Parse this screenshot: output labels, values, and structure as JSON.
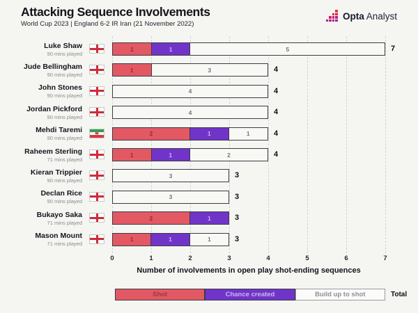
{
  "header": {
    "title": "Attacking Sequence Involvements",
    "subtitle": "World Cup 2023 | England 6-2 IR Iran (21 November 2022)",
    "brand": {
      "name_bold": "Opta",
      "name_light": "Analyst"
    }
  },
  "chart_data": {
    "type": "bar",
    "orientation": "horizontal-stacked",
    "title": "Attacking Sequence Involvements",
    "xlabel": "Number of involvements in open play shot-ending sequences",
    "xlim": [
      0,
      7
    ],
    "xticks": [
      0,
      1,
      2,
      3,
      4,
      5,
      6,
      7
    ],
    "grid": "vertical-dashed",
    "legend_position": "bottom",
    "series_keys": [
      "Shot",
      "Chance created",
      "Build up to shot"
    ],
    "players": [
      {
        "name": "Luke Shaw",
        "mins": "90 mins played",
        "flag": "england",
        "shot": 1,
        "chance_created": 1,
        "build_up": 5,
        "total": 7
      },
      {
        "name": "Jude Bellingham",
        "mins": "90 mins played",
        "flag": "england",
        "shot": 1,
        "chance_created": 0,
        "build_up": 3,
        "total": 4
      },
      {
        "name": "John Stones",
        "mins": "90 mins played",
        "flag": "england",
        "shot": 0,
        "chance_created": 0,
        "build_up": 4,
        "total": 4
      },
      {
        "name": "Jordan Pickford",
        "mins": "90 mins played",
        "flag": "england",
        "shot": 0,
        "chance_created": 0,
        "build_up": 4,
        "total": 4
      },
      {
        "name": "Mehdi Taremi",
        "mins": "90 mins played",
        "flag": "iran",
        "shot": 2,
        "chance_created": 1,
        "build_up": 1,
        "total": 4
      },
      {
        "name": "Raheem Sterling",
        "mins": "71 mins played",
        "flag": "england",
        "shot": 1,
        "chance_created": 1,
        "build_up": 2,
        "total": 4
      },
      {
        "name": "Kieran Trippier",
        "mins": "90 mins played",
        "flag": "england",
        "shot": 0,
        "chance_created": 0,
        "build_up": 3,
        "total": 3
      },
      {
        "name": "Declan Rice",
        "mins": "90 mins played",
        "flag": "england",
        "shot": 0,
        "chance_created": 0,
        "build_up": 3,
        "total": 3
      },
      {
        "name": "Bukayo Saka",
        "mins": "71 mins played",
        "flag": "england",
        "shot": 2,
        "chance_created": 1,
        "build_up": 0,
        "total": 3
      },
      {
        "name": "Mason Mount",
        "mins": "71 mins played",
        "flag": "england",
        "shot": 1,
        "chance_created": 1,
        "build_up": 1,
        "total": 3
      }
    ]
  },
  "legend": {
    "items": [
      {
        "label": "Shot",
        "color": "#e25964"
      },
      {
        "label": "Chance created",
        "color": "#7134c9"
      },
      {
        "label": "Build up to shot",
        "color": "#f8f8f5"
      }
    ],
    "total_label": "Total"
  },
  "colors": {
    "background": "#f5f5f2",
    "shot": "#e25964",
    "chance_created": "#7134c9",
    "build_up_to_shot": "#f8f8f5",
    "bar_border": "#3a3a45",
    "gridline": "#d2d2d4"
  }
}
